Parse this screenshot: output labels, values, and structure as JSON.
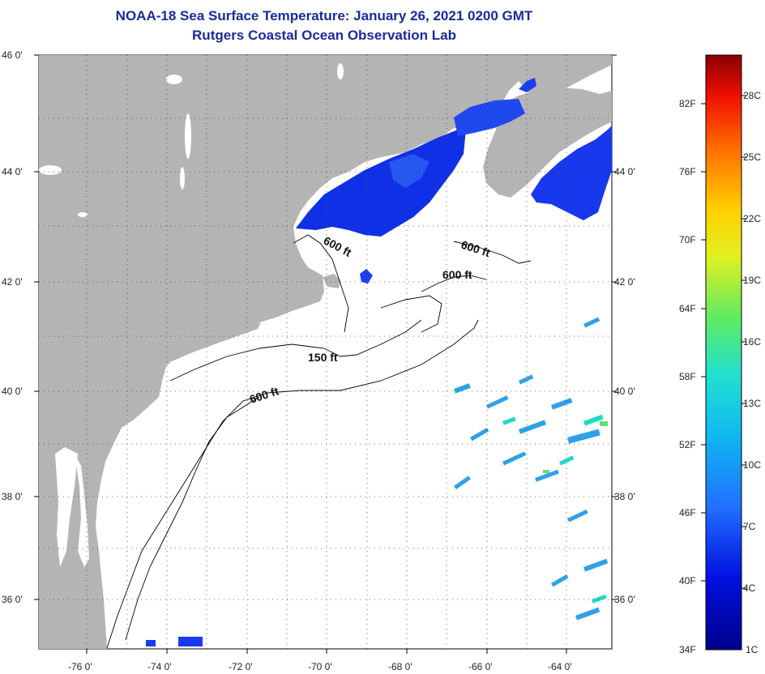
{
  "title": "NOAA-18 Sea Surface Temperature:  January 26, 2021 0200 GMT",
  "subtitle": "Rutgers Coastal Ocean Observation Lab",
  "lat_labels": [
    "46 0'",
    "44 0'",
    "42 0'",
    "40 0'",
    "38 0'",
    "36 0'"
  ],
  "lon_labels": [
    "-76 0'",
    "-74 0'",
    "-72 0'",
    "-70 0'",
    "-68 0'",
    "-66 0'",
    "-64 0'"
  ],
  "contour_labels": {
    "c1": "600 ft",
    "c2": "600 ft",
    "c3": "600 ft",
    "c4": "150 ft",
    "c5": "600 ft"
  },
  "colorbar": {
    "fahrenheit": [
      "82F",
      "76F",
      "70F",
      "64F",
      "58F",
      "52F",
      "46F",
      "40F",
      "34F"
    ],
    "celsius": [
      "28C",
      "25C",
      "22C",
      "19C",
      "16C",
      "13C",
      "10C",
      "7C",
      "4C",
      "1C"
    ]
  },
  "colors": {
    "land": "#b4b4b4",
    "ocean": "#ffffff",
    "title": "#1a2a9c"
  }
}
